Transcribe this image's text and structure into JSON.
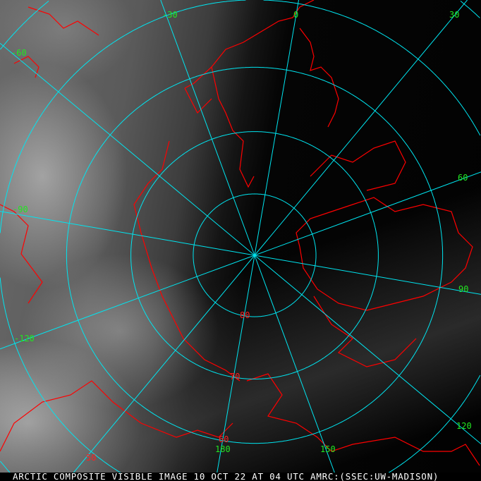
{
  "caption": "ARCTIC COMPOSITE VISIBLE IMAGE 10 OCT 22 AT 04 UTC AMRC:(SSEC:UW-MADISON)",
  "colors": {
    "grid": "#00e5f0",
    "coastline": "#ff0000",
    "longitude_label": "#22e622",
    "latitude_label": "#ff2020"
  },
  "projection": "polar stereographic, north pole",
  "longitude_labels": [
    "-30",
    "0",
    "30",
    "60",
    "90",
    "120",
    "150",
    "180",
    "-120",
    "-90",
    "-60"
  ],
  "latitude_labels": [
    "80",
    "70",
    "60",
    "50"
  ]
}
